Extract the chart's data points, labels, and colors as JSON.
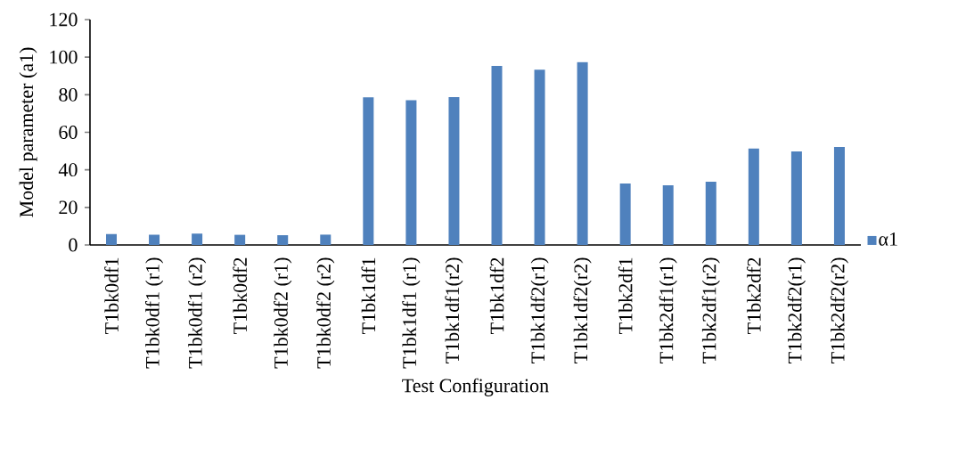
{
  "chart_data": {
    "type": "bar",
    "xlabel": "Test Configuration",
    "ylabel": "Model parameter (a1)",
    "categories": [
      "T1bk0df1",
      "T1bk0df1 (r1)",
      "T1bk0df1 (r2)",
      "T1bk0df2",
      "T1bk0df2 (r1)",
      "T1bk0df2 (r2)",
      "T1bk1df1",
      "T1bk1df1 (r1)",
      "T1bk1df1(r2)",
      "T1bk1df2",
      "T1bk1df2(r1)",
      "T1bk1df2(r2)",
      "T1bk2df1",
      "T1bk2df1(r1)",
      "T1bk2df1(r2)",
      "T1bk2df2",
      "T1bk2df2(r1)",
      "T1bk2df2(r2)"
    ],
    "series": [
      {
        "name": "α1",
        "color": "#4f81bd",
        "values": [
          5.8,
          5.5,
          6.0,
          5.4,
          5.2,
          5.5,
          78.6,
          77.1,
          78.7,
          95.3,
          93.3,
          97.4,
          32.7,
          31.8,
          33.7,
          51.4,
          49.8,
          52.2
        ]
      }
    ],
    "ylim": [
      0,
      120
    ],
    "yticks": [
      0,
      20,
      40,
      60,
      80,
      100,
      120
    ],
    "legend": "right",
    "grid": false
  }
}
